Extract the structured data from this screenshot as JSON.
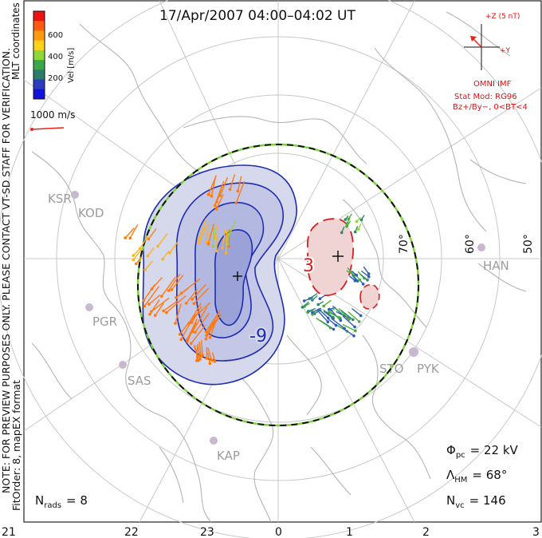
{
  "title": "17/Apr/2007 04:00–04:02 UT",
  "side_note": "NOTE: FOR PREVIEW PURPOSES ONLY. PLEASE CONTACT VT-SD STAFF FOR VERIFICATION.",
  "fit_order": "FitOrder: 8, mapEX format",
  "coord_system": "MLT coordinates",
  "color_scale": {
    "label": "Vel [m/s]",
    "ticks": [
      "600",
      "400",
      "200"
    ],
    "colors": [
      "#ee1111",
      "#ff5a10",
      "#ff9a10",
      "#ffd21a",
      "#8ed83a",
      "#3aa84a",
      "#2c7c6a",
      "#2c3cbe",
      "#1212d8"
    ]
  },
  "vector_ref_label": "1000 m/s",
  "imf": {
    "axis_z": "+Z (5 nT)",
    "axis_y": "+Y",
    "omni": "OMNI IMF",
    "model": "Stat Mod: RG96",
    "condition": "Bz+/By−, 0<BT<4"
  },
  "lat_labels": [
    "70°",
    "60°",
    "50°"
  ],
  "stations": [
    "KSR",
    "KOD",
    "PGR",
    "SAS",
    "KAP",
    "HAN",
    "STO",
    "PYK"
  ],
  "contour_labels": [
    "3",
    "-9"
  ],
  "stats": {
    "phi_sym": "Φ",
    "phi_sub": "pc",
    "phi_val": "= 22 kV",
    "lam_sym": "Λ",
    "lam_sub": "HM",
    "lam_val": "= 68°",
    "nvc_sym": "N",
    "nvc_sub": "vc",
    "nvc_val": "= 146",
    "nrads_sym": "N",
    "nrads_sub": "rads",
    "nrads_val": "= 8"
  },
  "mlt_axis": [
    "21",
    "22",
    "23",
    "0",
    "1",
    "2",
    "3"
  ],
  "colors": {
    "grid": "#c8c8c8",
    "coast": "#b4b4b4",
    "neg_fill": "#d6d8ec",
    "pos_fill": "#f0d4d4",
    "neg_line": "#1e2cb4",
    "pos_line": "#d42020",
    "hm_boundary": "#7ad33a"
  }
}
